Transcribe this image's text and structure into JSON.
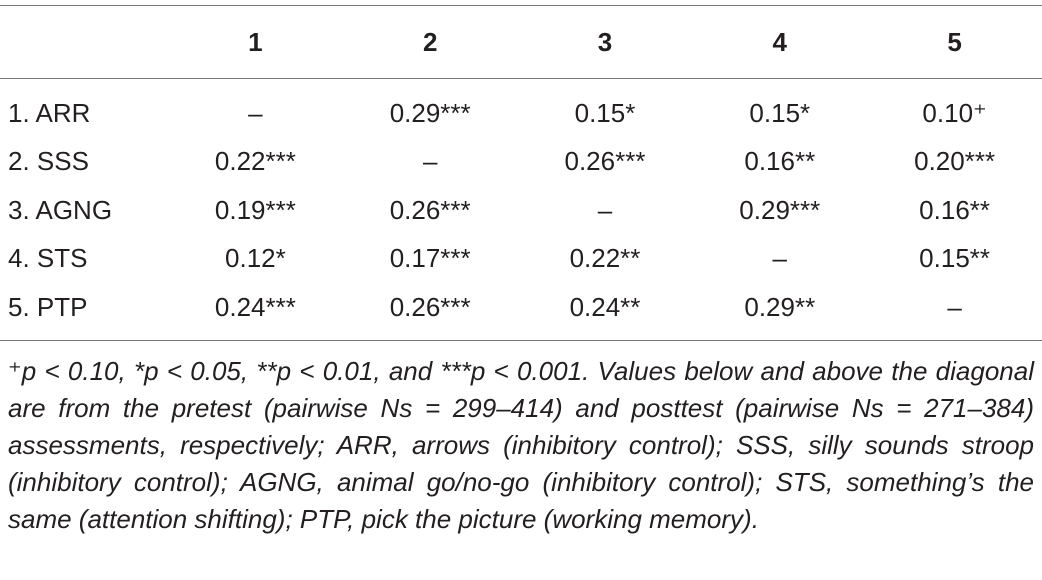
{
  "table": {
    "columns": [
      "1",
      "2",
      "3",
      "4",
      "5"
    ],
    "rows": [
      {
        "label": "1. ARR",
        "cells": [
          "–",
          "0.29***",
          "0.15*",
          "0.15*",
          "0.10⁺"
        ]
      },
      {
        "label": "2. SSS",
        "cells": [
          "0.22***",
          "–",
          "0.26***",
          "0.16**",
          "0.20***"
        ]
      },
      {
        "label": "3. AGNG",
        "cells": [
          "0.19***",
          "0.26***",
          "–",
          "0.29***",
          "0.16**"
        ]
      },
      {
        "label": "4. STS",
        "cells": [
          "0.12*",
          "0.17***",
          "0.22**",
          "–",
          "0.15**"
        ]
      },
      {
        "label": "5. PTP",
        "cells": [
          "0.24***",
          "0.26***",
          "0.24**",
          "0.29**",
          "–"
        ]
      }
    ],
    "footnote": "⁺p < 0.10, *p < 0.05, **p < 0.01, and ***p < 0.001. Values below and above the diagonal are from the pretest (pairwise Ns = 299–414) and posttest (pairwise Ns = 271–384) assessments, respectively; ARR, arrows (inhibitory control); SSS, silly sounds stroop (inhibitory control); AGNG, animal go/no-go (inhibitory control); STS, something’s the same (attention shifting); PTP, pick the picture (working memory)."
  }
}
